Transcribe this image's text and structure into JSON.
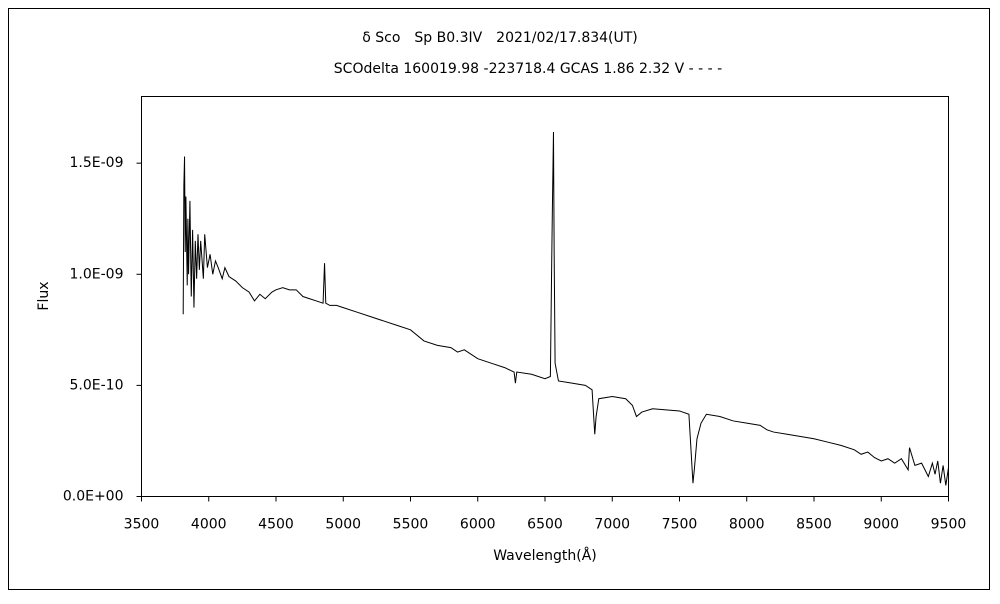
{
  "chart_data": {
    "type": "line",
    "title": "δ Sco　Sp B0.3IV　2021/02/17.834(UT)",
    "subtitle": "SCOdelta 160019.98 -223718.4 GCAS 1.86 2.32 V - - - -",
    "xlabel": "Wavelength(Å)",
    "ylabel": "Flux",
    "color": "#000000",
    "xlim": [
      3500,
      9500
    ],
    "xticks": [
      3500,
      4000,
      4500,
      5000,
      5500,
      6000,
      6500,
      7000,
      7500,
      8000,
      8500,
      9000,
      9500
    ],
    "ylim": [
      0,
      1.8e-09
    ],
    "yticks": [
      {
        "value": 0,
        "label": "0.0E+00"
      },
      {
        "value": 5e-10,
        "label": "5.0E-10"
      },
      {
        "value": 1e-09,
        "label": "1.0E-09"
      },
      {
        "value": 1.5e-09,
        "label": "1.5E-09"
      }
    ],
    "x": [
      3810,
      3815,
      3820,
      3825,
      3830,
      3840,
      3845,
      3850,
      3860,
      3870,
      3880,
      3890,
      3900,
      3910,
      3920,
      3930,
      3940,
      3960,
      3970,
      3990,
      4010,
      4030,
      4050,
      4070,
      4100,
      4120,
      4150,
      4200,
      4250,
      4300,
      4340,
      4380,
      4420,
      4470,
      4500,
      4550,
      4600,
      4650,
      4700,
      4750,
      4800,
      4850,
      4861,
      4870,
      4900,
      4950,
      5000,
      5100,
      5200,
      5300,
      5400,
      5500,
      5600,
      5700,
      5800,
      5850,
      5900,
      6000,
      6100,
      6200,
      6270,
      6280,
      6290,
      6400,
      6500,
      6540,
      6550,
      6555,
      6563,
      6568,
      6575,
      6600,
      6700,
      6800,
      6850,
      6870,
      6880,
      6900,
      7000,
      7100,
      7150,
      7180,
      7220,
      7300,
      7400,
      7500,
      7570,
      7600,
      7610,
      7630,
      7660,
      7700,
      7800,
      7900,
      8000,
      8100,
      8150,
      8200,
      8300,
      8400,
      8500,
      8600,
      8700,
      8800,
      8850,
      8900,
      8950,
      9000,
      9050,
      9100,
      9150,
      9200,
      9210,
      9250,
      9300,
      9350,
      9380,
      9400,
      9420,
      9440,
      9460,
      9480,
      9500
    ],
    "values": [
      8.2e-10,
      1.4e-09,
      1.53e-09,
      1.1e-09,
      1.35e-09,
      9.5e-10,
      1.25e-09,
      1e-09,
      1.33e-09,
      9e-10,
      1.2e-09,
      8.5e-10,
      1.15e-09,
      9.8e-10,
      1.18e-09,
      1.02e-09,
      1.15e-09,
      9.8e-10,
      1.18e-09,
      1.03e-09,
      1.09e-09,
      1e-09,
      1.06e-09,
      1.03e-09,
      9.8e-10,
      1.03e-09,
      9.9e-10,
      9.7e-10,
      9.4e-10,
      9.2e-10,
      8.8e-10,
      9.1e-10,
      8.9e-10,
      9.2e-10,
      9.3e-10,
      9.4e-10,
      9.3e-10,
      9.3e-10,
      9e-10,
      8.9e-10,
      8.8e-10,
      8.7e-10,
      1.05e-09,
      8.7e-10,
      8.6e-10,
      8.6e-10,
      8.5e-10,
      8.3e-10,
      8.1e-10,
      7.9e-10,
      7.7e-10,
      7.5e-10,
      7e-10,
      6.8e-10,
      6.7e-10,
      6.5e-10,
      6.6e-10,
      6.2e-10,
      6e-10,
      5.8e-10,
      5.6e-10,
      5.1e-10,
      5.6e-10,
      5.5e-10,
      5.3e-10,
      5.4e-10,
      1.06e-09,
      1.3e-09,
      1.64e-09,
      1.1e-09,
      6e-10,
      5.2e-10,
      5.1e-10,
      5e-10,
      4.8e-10,
      2.8e-10,
      3.6e-10,
      4.4e-10,
      4.5e-10,
      4.4e-10,
      4.1e-10,
      3.6e-10,
      3.8e-10,
      3.95e-10,
      3.9e-10,
      3.85e-10,
      3.7e-10,
      6e-11,
      1.2e-10,
      2.6e-10,
      3.3e-10,
      3.7e-10,
      3.6e-10,
      3.4e-10,
      3.3e-10,
      3.2e-10,
      3e-10,
      2.9e-10,
      2.8e-10,
      2.7e-10,
      2.6e-10,
      2.45e-10,
      2.3e-10,
      2.1e-10,
      1.9e-10,
      2e-10,
      1.75e-10,
      1.6e-10,
      1.7e-10,
      1.5e-10,
      1.7e-10,
      1.2e-10,
      2.2e-10,
      1.4e-10,
      1.5e-10,
      9e-11,
      1.5e-10,
      1e-10,
      1.6e-10,
      6e-11,
      1.4e-10,
      5e-11,
      1.3e-10
    ]
  }
}
